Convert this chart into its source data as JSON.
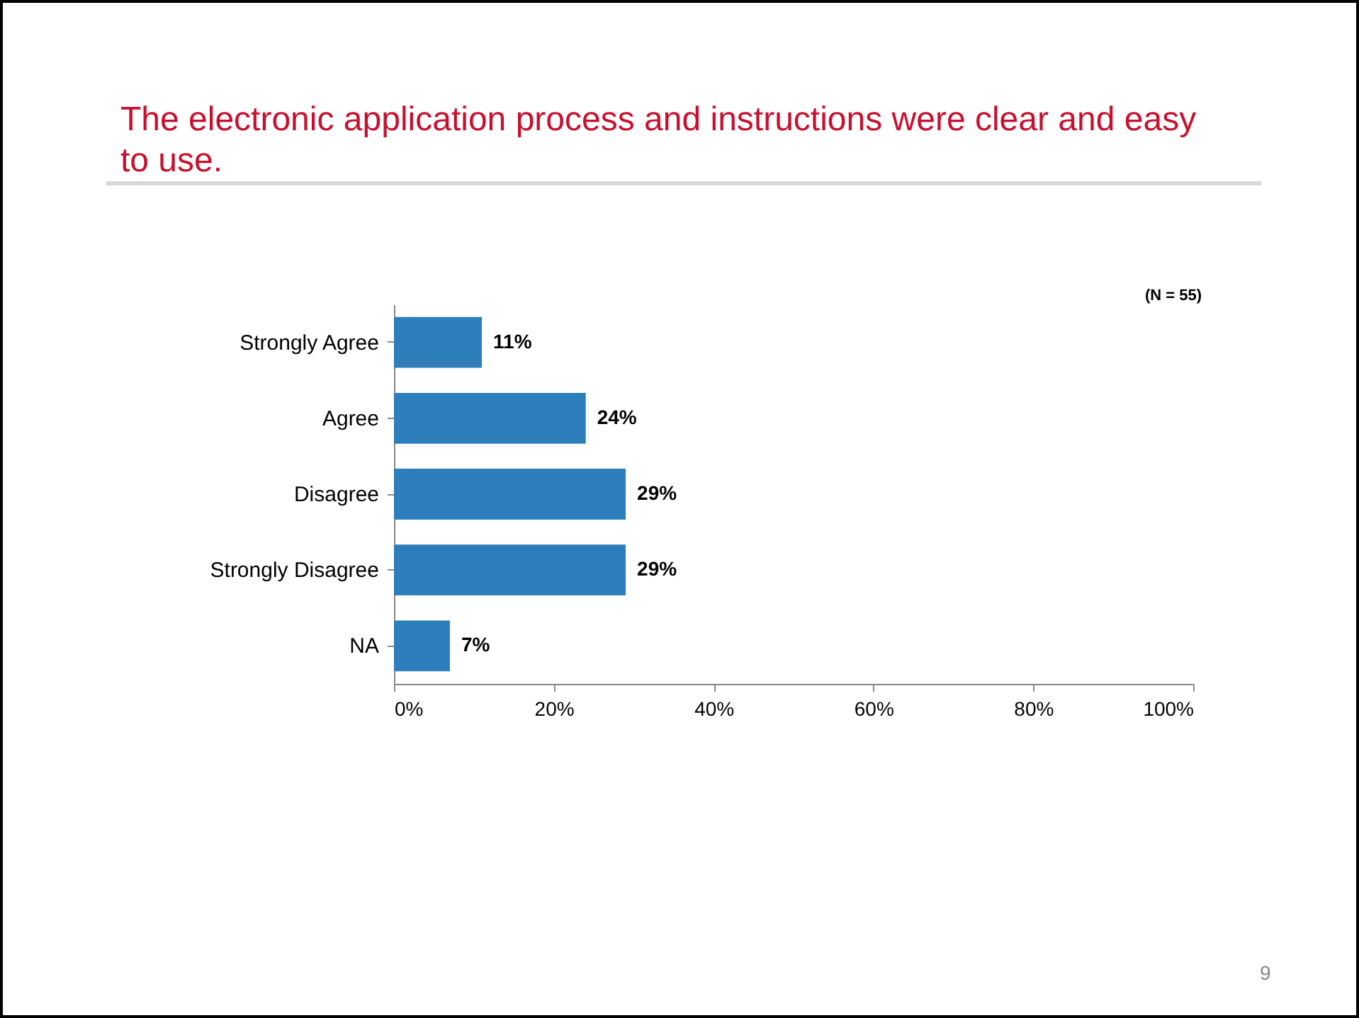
{
  "chart_data": {
    "type": "bar",
    "orientation": "horizontal",
    "title": "The electronic application process and instructions were clear and easy to use.",
    "categories": [
      "Strongly Agree",
      "Agree",
      "Disagree",
      "Strongly Disagree",
      "NA"
    ],
    "values": [
      11,
      24,
      29,
      29,
      7
    ],
    "value_labels": [
      "11%",
      "24%",
      "29%",
      "29%",
      "7%"
    ],
    "color": "#2e7ebb",
    "xlim": [
      0,
      100
    ],
    "xticks": [
      {
        "value": 0,
        "label": "0%"
      },
      {
        "value": 20,
        "label": "20%"
      },
      {
        "value": 40,
        "label": "40%"
      },
      {
        "value": 60,
        "label": "60%"
      },
      {
        "value": 80,
        "label": "80%"
      },
      {
        "value": 100,
        "label": "100%"
      }
    ],
    "grid": false,
    "annotations": [
      "(N = 55)",
      "9"
    ]
  }
}
